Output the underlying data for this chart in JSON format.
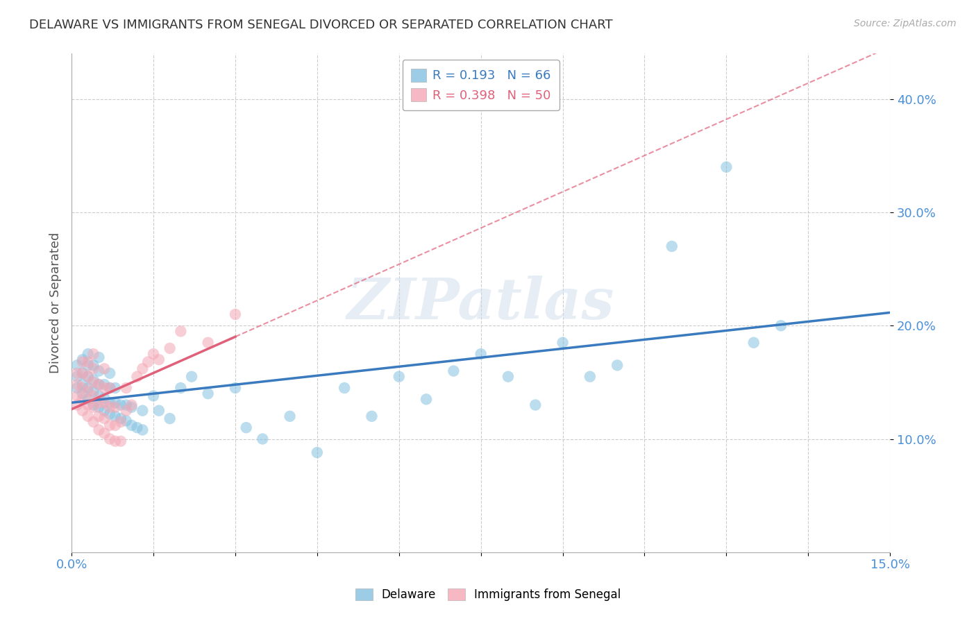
{
  "title": "DELAWARE VS IMMIGRANTS FROM SENEGAL DIVORCED OR SEPARATED CORRELATION CHART",
  "source": "Source: ZipAtlas.com",
  "ylabel": "Divorced or Separated",
  "xlim": [
    0.0,
    0.15
  ],
  "ylim": [
    0.0,
    0.44
  ],
  "xtick_positions": [
    0.0,
    0.015,
    0.03,
    0.045,
    0.06,
    0.075,
    0.09,
    0.105,
    0.12,
    0.135,
    0.15
  ],
  "xtick_labels": [
    "0.0%",
    "",
    "",
    "",
    "",
    "",
    "",
    "",
    "",
    "",
    "15.0%"
  ],
  "ytick_positions": [
    0.1,
    0.2,
    0.3,
    0.4
  ],
  "ytick_labels": [
    "10.0%",
    "20.0%",
    "30.0%",
    "40.0%"
  ],
  "legend_blue_R": "0.193",
  "legend_blue_N": "66",
  "legend_pink_R": "0.398",
  "legend_pink_N": "50",
  "blue_color": "#85c1e0",
  "pink_color": "#f4a7b5",
  "blue_line_color": "#3a7abf",
  "pink_line_color": "#e0607a",
  "watermark_text": "ZIPatlas",
  "blue_scatter_x": [
    0.001,
    0.001,
    0.001,
    0.002,
    0.002,
    0.002,
    0.002,
    0.003,
    0.003,
    0.003,
    0.003,
    0.003,
    0.004,
    0.004,
    0.004,
    0.004,
    0.005,
    0.005,
    0.005,
    0.005,
    0.005,
    0.006,
    0.006,
    0.006,
    0.007,
    0.007,
    0.007,
    0.007,
    0.008,
    0.008,
    0.008,
    0.009,
    0.009,
    0.01,
    0.01,
    0.011,
    0.011,
    0.012,
    0.013,
    0.013,
    0.015,
    0.016,
    0.018,
    0.02,
    0.022,
    0.025,
    0.03,
    0.032,
    0.035,
    0.04,
    0.045,
    0.05,
    0.055,
    0.06,
    0.065,
    0.07,
    0.075,
    0.08,
    0.085,
    0.09,
    0.095,
    0.1,
    0.11,
    0.12,
    0.125,
    0.13
  ],
  "blue_scatter_y": [
    0.145,
    0.155,
    0.165,
    0.14,
    0.148,
    0.158,
    0.17,
    0.135,
    0.145,
    0.155,
    0.165,
    0.175,
    0.13,
    0.142,
    0.152,
    0.165,
    0.128,
    0.138,
    0.148,
    0.16,
    0.172,
    0.125,
    0.136,
    0.148,
    0.122,
    0.132,
    0.145,
    0.158,
    0.12,
    0.132,
    0.145,
    0.118,
    0.13,
    0.116,
    0.13,
    0.112,
    0.128,
    0.11,
    0.108,
    0.125,
    0.138,
    0.125,
    0.118,
    0.145,
    0.155,
    0.14,
    0.145,
    0.11,
    0.1,
    0.12,
    0.088,
    0.145,
    0.12,
    0.155,
    0.135,
    0.16,
    0.175,
    0.155,
    0.13,
    0.185,
    0.155,
    0.165,
    0.27,
    0.34,
    0.185,
    0.2
  ],
  "pink_scatter_x": [
    0.001,
    0.001,
    0.001,
    0.001,
    0.002,
    0.002,
    0.002,
    0.002,
    0.002,
    0.003,
    0.003,
    0.003,
    0.003,
    0.003,
    0.004,
    0.004,
    0.004,
    0.004,
    0.004,
    0.004,
    0.005,
    0.005,
    0.005,
    0.005,
    0.006,
    0.006,
    0.006,
    0.006,
    0.006,
    0.007,
    0.007,
    0.007,
    0.007,
    0.008,
    0.008,
    0.008,
    0.009,
    0.009,
    0.01,
    0.01,
    0.011,
    0.012,
    0.013,
    0.014,
    0.015,
    0.016,
    0.018,
    0.02,
    0.025,
    0.03
  ],
  "pink_scatter_y": [
    0.13,
    0.138,
    0.148,
    0.158,
    0.125,
    0.135,
    0.145,
    0.158,
    0.168,
    0.12,
    0.13,
    0.142,
    0.155,
    0.168,
    0.115,
    0.128,
    0.138,
    0.15,
    0.162,
    0.175,
    0.108,
    0.12,
    0.132,
    0.148,
    0.105,
    0.118,
    0.132,
    0.145,
    0.162,
    0.1,
    0.112,
    0.128,
    0.145,
    0.098,
    0.112,
    0.128,
    0.098,
    0.115,
    0.125,
    0.145,
    0.13,
    0.155,
    0.162,
    0.168,
    0.175,
    0.17,
    0.18,
    0.195,
    0.185,
    0.21
  ]
}
